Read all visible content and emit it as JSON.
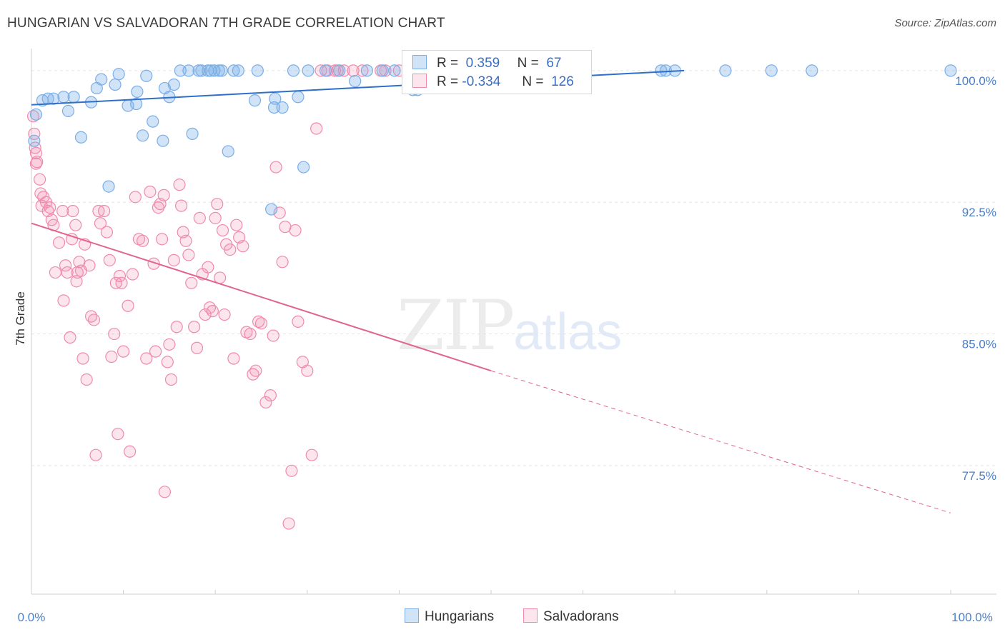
{
  "title": "HUNGARIAN VS SALVADORAN 7TH GRADE CORRELATION CHART",
  "source": "Source: ZipAtlas.com",
  "watermark": {
    "zip": "ZIP",
    "atlas": "atlas"
  },
  "colors": {
    "hungarians": "#7aaee6",
    "hungarians_fill": "rgba(122,174,230,0.35)",
    "hungarians_line": "#2f6fc9",
    "salvadorans": "#f08aac",
    "salvadorans_fill": "rgba(240,138,172,0.22)",
    "salvadorans_line": "#e0648f",
    "tick_text": "#4a7fc9",
    "grid": "#e4e4e4"
  },
  "legend": {
    "r_label": "R =",
    "n_label": "N =",
    "hungarians": {
      "r": "0.359",
      "n": "67"
    },
    "salvadorans": {
      "r": "-0.334",
      "n": "126"
    }
  },
  "bottom_legend": {
    "hungarians": "Hungarians",
    "salvadorans": "Salvadorans"
  },
  "chart_data": {
    "type": "scatter",
    "xlabel": "",
    "ylabel": "7th Grade",
    "xlim": [
      0,
      100
    ],
    "ylim": [
      70.5,
      101.5
    ],
    "x_tick_labels": [
      "0.0%",
      "100.0%"
    ],
    "y_ticks": [
      77.5,
      85.0,
      92.5,
      100.0
    ],
    "y_tick_labels": [
      "77.5%",
      "85.0%",
      "92.5%",
      "100.0%"
    ],
    "grid": true,
    "series": [
      {
        "name": "Hungarians",
        "x": [
          0.3,
          0.5,
          1.2,
          1.8,
          2.4,
          3.5,
          4.0,
          4.6,
          5.4,
          6.5,
          7.1,
          7.6,
          8.4,
          9.1,
          9.5,
          10.5,
          11.4,
          11.5,
          12.1,
          12.5,
          13.2,
          14.3,
          14.5,
          15.0,
          15.5,
          16.2,
          17.1,
          17.5,
          18.2,
          18.5,
          19.2,
          19.5,
          19.9,
          20.4,
          20.7,
          21.4,
          22.0,
          22.5,
          24.3,
          24.6,
          26.1,
          26.4,
          26.5,
          27.3,
          28.5,
          29.0,
          29.6,
          30.1,
          32.0,
          33.5,
          35.2,
          36.5,
          38.2,
          39.5,
          41.5,
          42.0,
          47.0,
          51.0,
          52.0,
          53.0,
          68.5,
          69.0,
          70.0,
          75.5,
          80.5,
          84.9,
          100.0
        ],
        "y": [
          96.0,
          97.5,
          98.3,
          98.4,
          98.4,
          98.5,
          97.7,
          98.5,
          96.2,
          98.2,
          99.0,
          99.5,
          93.4,
          99.2,
          99.8,
          98.0,
          98.1,
          98.8,
          96.3,
          99.7,
          97.1,
          96.0,
          99.0,
          98.5,
          99.2,
          100.0,
          100.0,
          96.4,
          100.0,
          100.0,
          100.0,
          100.0,
          100.0,
          100.0,
          100.0,
          95.4,
          100.0,
          100.0,
          98.3,
          100.0,
          92.1,
          97.9,
          98.4,
          97.9,
          100.0,
          98.5,
          94.5,
          100.0,
          100.0,
          100.0,
          99.4,
          100.0,
          100.0,
          100.0,
          98.9,
          98.9,
          100.0,
          100.0,
          100.0,
          100.0,
          100.0,
          100.0,
          100.0,
          100.0,
          100.0,
          100.0,
          100.0
        ]
      },
      {
        "name": "Salvadorans",
        "x": [
          0.2,
          0.3,
          0.4,
          0.5,
          0.5,
          0.6,
          0.9,
          1.0,
          1.1,
          1.3,
          1.6,
          1.8,
          2.0,
          2.2,
          2.4,
          2.6,
          3.0,
          3.4,
          3.5,
          3.7,
          3.9,
          4.2,
          4.4,
          4.5,
          4.8,
          4.9,
          5.0,
          5.2,
          5.4,
          5.6,
          5.8,
          6.0,
          6.3,
          6.5,
          6.8,
          7.0,
          7.3,
          7.5,
          7.9,
          8.2,
          8.5,
          8.7,
          9.0,
          9.2,
          9.4,
          9.6,
          9.8,
          10.0,
          10.5,
          10.7,
          11.0,
          11.3,
          11.7,
          12.1,
          12.5,
          12.9,
          13.3,
          13.5,
          13.8,
          14.0,
          14.2,
          14.4,
          14.5,
          14.8,
          15.0,
          15.2,
          15.5,
          15.8,
          16.1,
          16.3,
          16.5,
          16.8,
          17.1,
          17.4,
          17.7,
          18.0,
          18.3,
          18.6,
          18.9,
          19.2,
          19.4,
          19.7,
          20.0,
          20.2,
          20.5,
          20.8,
          21.0,
          21.2,
          21.6,
          22.0,
          22.3,
          22.6,
          23.0,
          23.4,
          23.8,
          24.1,
          24.4,
          24.7,
          25.0,
          25.5,
          26.0,
          26.3,
          26.6,
          27.0,
          27.3,
          27.6,
          28.0,
          28.3,
          28.7,
          29.0,
          29.5,
          30.0,
          30.5,
          31.0,
          31.5,
          32.2,
          33.0,
          33.3,
          34.0,
          35.0,
          36.0,
          38.0,
          38.5,
          40.0,
          41.0,
          43.0
        ],
        "y": [
          97.4,
          96.4,
          95.6,
          95.3,
          94.7,
          94.8,
          93.8,
          93.0,
          92.3,
          92.8,
          92.5,
          92.0,
          92.2,
          91.5,
          91.2,
          88.5,
          90.2,
          92.0,
          86.9,
          88.9,
          88.5,
          84.8,
          90.4,
          92.0,
          91.2,
          88.0,
          88.5,
          89.1,
          88.6,
          83.6,
          90.1,
          82.4,
          88.9,
          86.0,
          85.8,
          78.1,
          92.0,
          91.3,
          92.0,
          90.8,
          89.2,
          83.7,
          85.0,
          87.9,
          79.3,
          88.3,
          87.9,
          84.0,
          86.6,
          78.3,
          88.4,
          92.8,
          90.4,
          90.3,
          83.6,
          93.1,
          89.0,
          84.0,
          92.2,
          92.4,
          90.4,
          92.9,
          76.0,
          83.4,
          84.4,
          82.4,
          89.2,
          85.4,
          93.5,
          92.3,
          90.8,
          90.3,
          89.5,
          87.9,
          85.4,
          84.2,
          91.6,
          88.4,
          86.1,
          88.8,
          86.5,
          86.3,
          91.6,
          92.4,
          88.2,
          90.9,
          86.1,
          90.1,
          89.8,
          83.6,
          91.2,
          90.5,
          90.0,
          85.1,
          85.0,
          82.7,
          82.9,
          85.7,
          85.6,
          81.1,
          81.5,
          84.9,
          94.5,
          91.9,
          89.1,
          91.1,
          74.2,
          77.2,
          90.9,
          85.7,
          83.4,
          82.9,
          78.1,
          96.7,
          100.0,
          100.0,
          100.0,
          100.0,
          100.0,
          100.0,
          100.0,
          100.0,
          100.0,
          100.0,
          100.0,
          100.0
        ]
      }
    ],
    "trendlines": [
      {
        "series": "Hungarians",
        "x": [
          0,
          71
        ],
        "y": [
          98.05,
          100.0
        ],
        "style": "solid"
      },
      {
        "series": "Salvadorans",
        "x": [
          0,
          50
        ],
        "y": [
          91.3,
          82.9
        ],
        "style": "solid"
      },
      {
        "series": "Salvadorans",
        "x": [
          50,
          100
        ],
        "y": [
          82.9,
          74.8
        ],
        "style": "dashed"
      }
    ]
  }
}
